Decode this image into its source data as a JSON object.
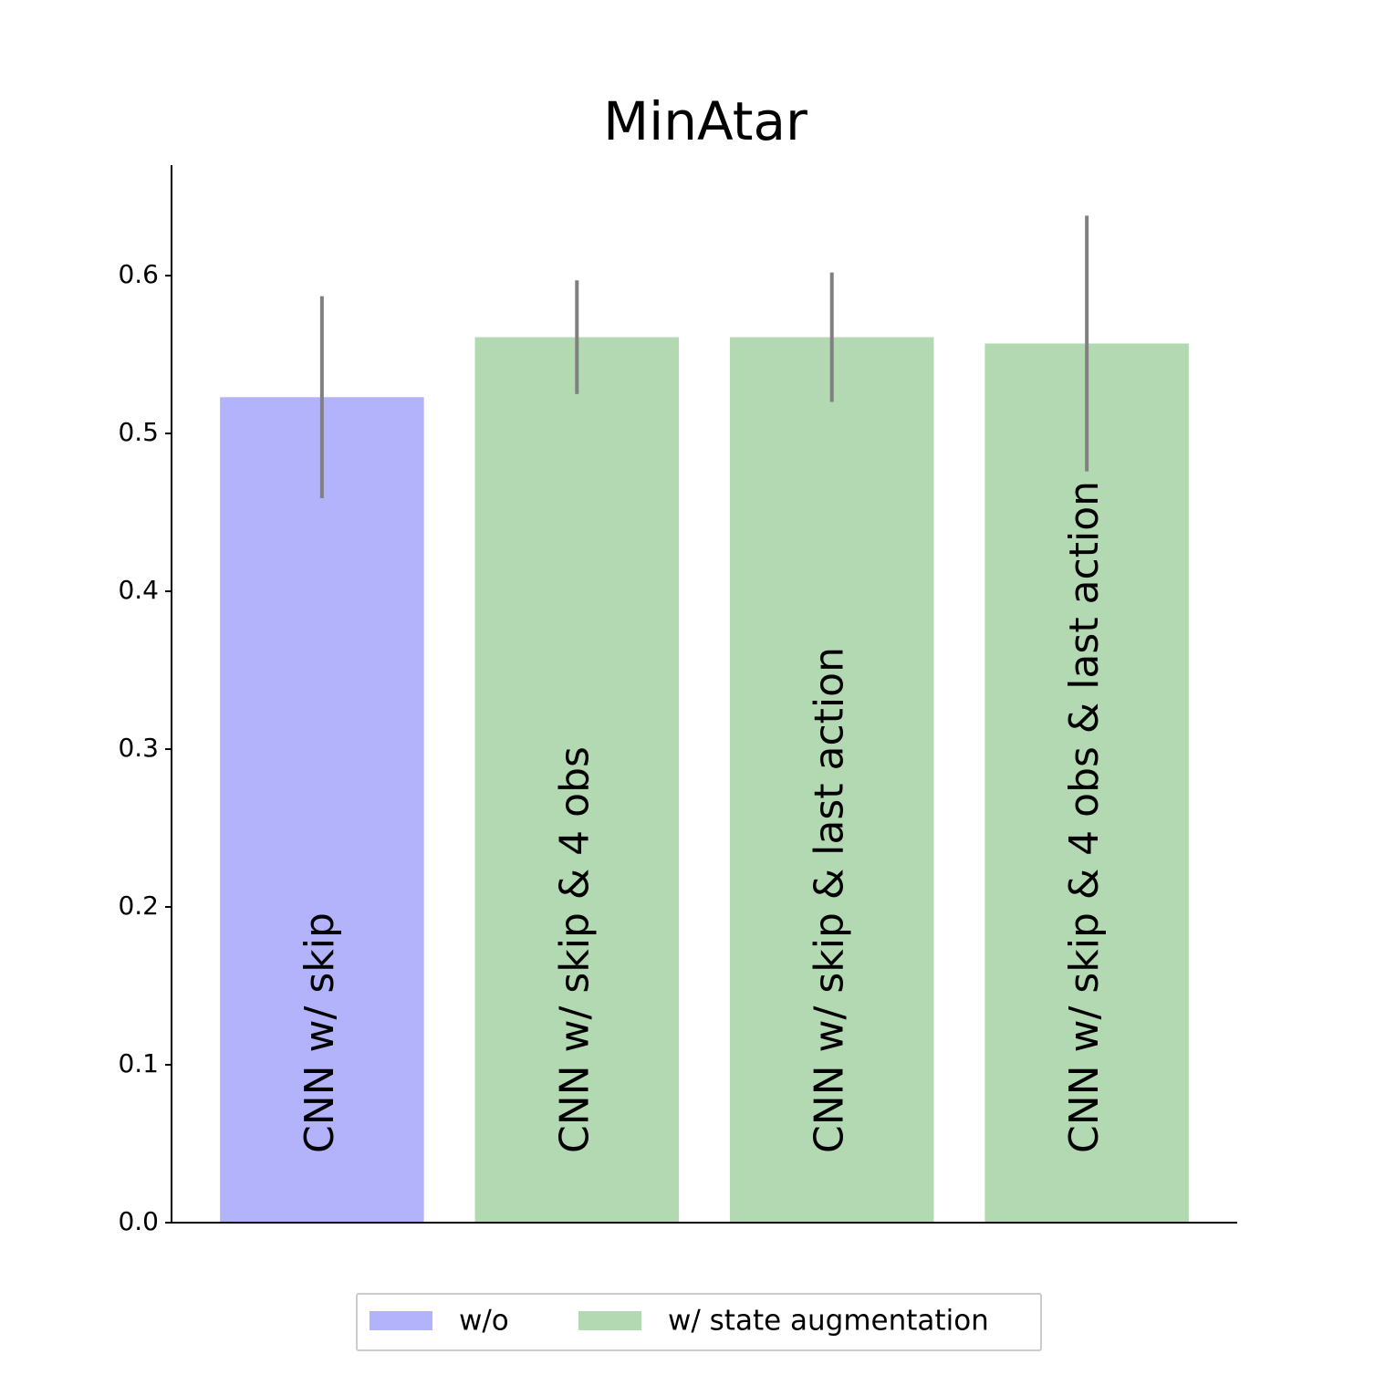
{
  "chart_data": {
    "type": "bar",
    "title": "MinAtar",
    "categories": [
      "CNN w/ skip",
      "CNN w/ skip & 4 obs",
      "CNN w/ skip & last action",
      "CNN w/ skip & 4 obs & last action"
    ],
    "series": [
      {
        "name": "w/o",
        "color": "#b3b3fc",
        "values": [
          0.523,
          null,
          null,
          null
        ],
        "errors": [
          0.064,
          null,
          null,
          null
        ]
      },
      {
        "name": "w/ state augmentation",
        "color": "#b3d9b3",
        "values": [
          null,
          0.561,
          0.561,
          0.557
        ],
        "errors": [
          null,
          0.036,
          0.041,
          0.081
        ]
      }
    ],
    "error_color": "#808080",
    "ylim": [
      0,
      0.67
    ],
    "yticks": [
      {
        "value": 0,
        "label": "0.0"
      },
      0.1,
      0.2,
      0.3,
      0.4,
      0.5,
      0.6
    ],
    "grid": false,
    "legend": "bottom"
  }
}
